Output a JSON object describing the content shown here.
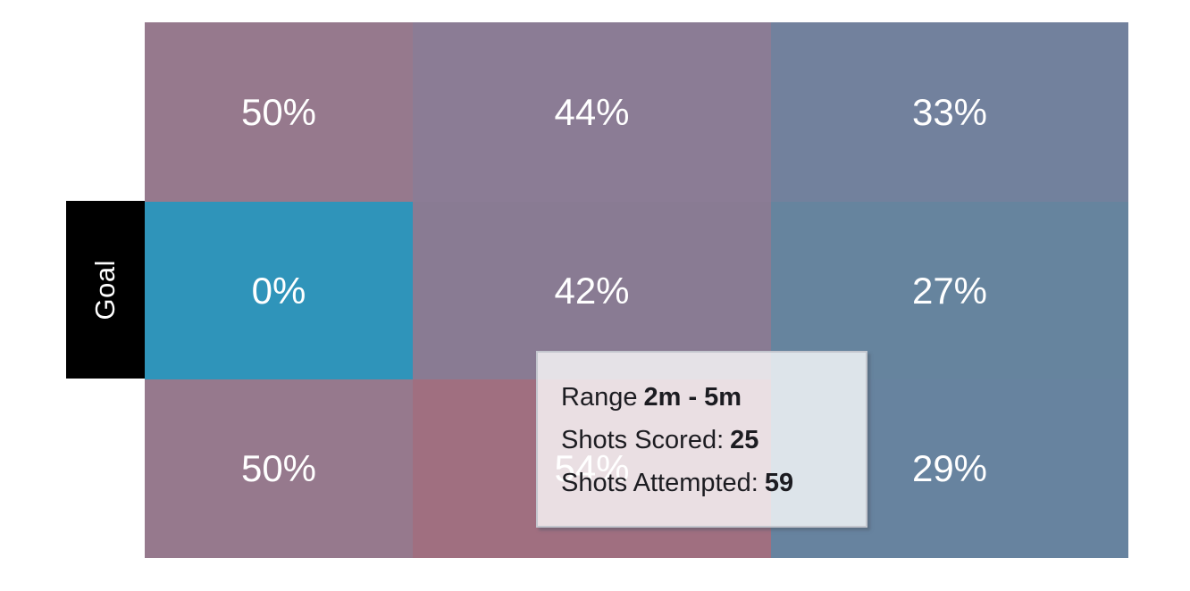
{
  "chart_data": {
    "type": "heatmap",
    "title": "",
    "rows": 3,
    "cols": 3,
    "row_axis_label": "Goal",
    "values_pct": [
      [
        50,
        44,
        33
      ],
      [
        0,
        42,
        27
      ],
      [
        50,
        54,
        29
      ]
    ],
    "cells": [
      {
        "row": 1,
        "col": 1,
        "label": "50%",
        "value": 50,
        "color": "#96798D"
      },
      {
        "row": 1,
        "col": 2,
        "label": "44%",
        "value": 44,
        "color": "#8B7C95"
      },
      {
        "row": 1,
        "col": 3,
        "label": "33%",
        "value": 33,
        "color": "#72819D"
      },
      {
        "row": 2,
        "col": 1,
        "label": "0%",
        "value": 0,
        "color": "#2F94BA"
      },
      {
        "row": 2,
        "col": 2,
        "label": "42%",
        "value": 42,
        "color": "#897B93"
      },
      {
        "row": 2,
        "col": 3,
        "label": "27%",
        "value": 27,
        "color": "#66849E"
      },
      {
        "row": 3,
        "col": 1,
        "label": "50%",
        "value": 50,
        "color": "#96798D"
      },
      {
        "row": 3,
        "col": 2,
        "label": "54%",
        "value": 54,
        "color": "#A06F80"
      },
      {
        "row": 3,
        "col": 3,
        "label": "29%",
        "value": 29,
        "color": "#67839F"
      }
    ],
    "legend_position": "none",
    "grid_lines": false
  },
  "goal": {
    "label": "Goal",
    "bg_color": "#000000",
    "text_color": "#ffffff"
  },
  "tooltip": {
    "range_label": "Range",
    "range_value": "2m - 5m",
    "scored_label": "Shots Scored:",
    "scored_value": "25",
    "attempted_label": "Shots Attempted:",
    "attempted_value": "59",
    "bg_color": "rgba(255,255,255,0.78)",
    "border_color": "#c3c6ce",
    "text_color": "#1c1c21"
  }
}
